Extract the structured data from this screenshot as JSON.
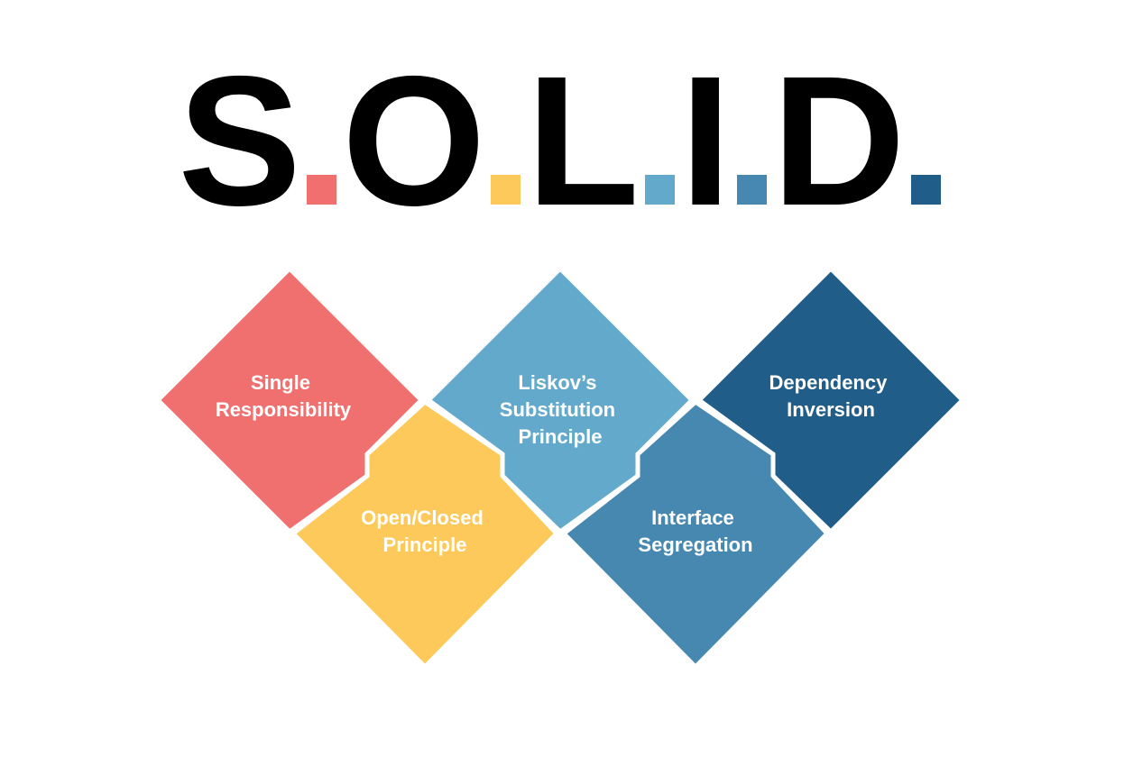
{
  "title": {
    "letters": [
      "S",
      "O",
      "L",
      "I",
      "D"
    ],
    "dot_colors": [
      "#f07070",
      "#fdc95a",
      "#62a9cb",
      "#4788b0",
      "#215d89"
    ]
  },
  "principles": [
    {
      "lines": [
        "Single",
        "Responsibility"
      ],
      "color": "#f07070"
    },
    {
      "lines": [
        "Open/Closed",
        "Principle"
      ],
      "color": "#fdc95a"
    },
    {
      "lines": [
        "Liskov’s",
        "Substitution",
        "Principle"
      ],
      "color": "#62a9cb"
    },
    {
      "lines": [
        "Interface",
        "Segregation"
      ],
      "color": "#4788b0"
    },
    {
      "lines": [
        "Dependency",
        "Inversion"
      ],
      "color": "#215d89"
    }
  ]
}
